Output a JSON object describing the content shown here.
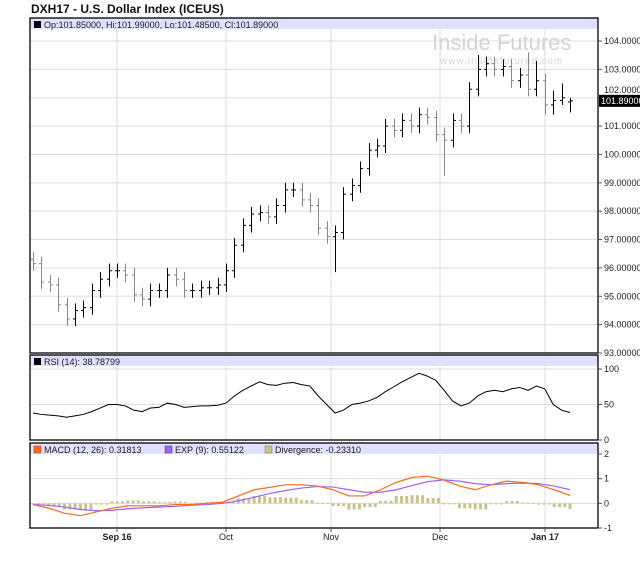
{
  "title": "DXH17 - U.S. Dollar Index (ICEUS)",
  "watermark": {
    "logo": "Inside Futures",
    "url": "www.insidefutures.com"
  },
  "colors": {
    "price": "#000000",
    "rsi": "#000000",
    "macd": "#ff6a1a",
    "exp": "#9966ff",
    "divergence": "#c8c48a",
    "legend_strip": "#e0e0ff",
    "grid": "#dddddd"
  },
  "chart_data": [
    {
      "type": "ohlc",
      "legend": "Op:101.85000, Hi:101.99000, Lo:101.48500, Cl:101.89000",
      "last_price_label": "101.89000",
      "ylim": [
        93,
        104
      ],
      "y_ticks": [
        "104.00000",
        "103.00000",
        "102.00000",
        "101.00000",
        "100.00000",
        "99.00000",
        "98.00000",
        "97.00000",
        "96.00000",
        "95.00000",
        "94.00000",
        "93.00000"
      ],
      "x_ticks": [
        {
          "label": "Sep 16",
          "bold": true
        },
        {
          "label": "Oct",
          "bold": false
        },
        {
          "label": "Nov",
          "bold": false
        },
        {
          "label": "Dec",
          "bold": false
        },
        {
          "label": "Jan 17",
          "bold": true
        }
      ],
      "grid": true,
      "open": [
        96.3,
        96.15,
        95.5,
        95.4,
        94.7,
        94.2,
        94.5,
        94.6,
        95.2,
        95.6,
        95.9,
        95.9,
        95.75,
        95.05,
        94.9,
        95.2,
        95.2,
        95.75,
        95.6,
        95.2,
        95.2,
        95.3,
        95.3,
        95.4,
        95.9,
        96.8,
        97.5,
        97.9,
        97.95,
        97.8,
        98.2,
        98.75,
        98.75,
        98.4,
        98.2,
        97.4,
        97.1,
        97.25,
        98.6,
        98.9,
        99.5,
        100.15,
        100.3,
        101.0,
        100.85,
        101.2,
        101.0,
        101.4,
        101.3,
        100.7,
        100.5,
        101.2,
        101.0,
        102.3,
        103.0,
        103.2,
        103.0,
        103.1,
        102.6,
        102.8,
        102.3,
        102.6,
        101.75,
        101.9,
        101.85
      ],
      "high": [
        96.55,
        96.4,
        95.75,
        95.65,
        94.95,
        94.75,
        94.85,
        95.45,
        95.85,
        96.15,
        96.15,
        96.15,
        96.0,
        95.3,
        95.45,
        95.45,
        96.0,
        96.0,
        95.85,
        95.45,
        95.55,
        95.55,
        95.65,
        96.15,
        97.05,
        97.75,
        98.15,
        98.2,
        98.2,
        98.45,
        99.0,
        99.0,
        99.0,
        98.65,
        98.45,
        97.65,
        97.5,
        98.85,
        99.15,
        99.75,
        100.4,
        100.55,
        101.25,
        101.25,
        101.45,
        101.45,
        101.65,
        101.65,
        101.55,
        100.95,
        101.45,
        101.45,
        102.55,
        103.5,
        103.45,
        103.45,
        103.35,
        103.35,
        103.05,
        103.6,
        103.3,
        102.85,
        102.25,
        102.5,
        101.99
      ],
      "low": [
        95.9,
        95.25,
        95.15,
        94.45,
        93.95,
        93.95,
        94.25,
        94.35,
        94.95,
        95.35,
        95.65,
        95.5,
        94.8,
        94.65,
        94.65,
        94.95,
        94.95,
        95.35,
        94.95,
        94.95,
        94.95,
        95.05,
        95.05,
        95.15,
        95.65,
        96.55,
        97.25,
        97.65,
        97.55,
        97.55,
        97.95,
        98.5,
        98.15,
        97.95,
        97.15,
        96.85,
        95.85,
        97.0,
        98.35,
        98.65,
        99.25,
        99.9,
        100.05,
        100.6,
        100.6,
        100.75,
        100.75,
        101.05,
        100.45,
        99.25,
        100.25,
        100.75,
        100.75,
        102.05,
        102.75,
        102.75,
        102.75,
        102.35,
        102.35,
        102.05,
        102.05,
        101.4,
        101.4,
        101.75,
        101.485
      ],
      "close": [
        96.15,
        95.5,
        95.4,
        94.7,
        94.2,
        94.5,
        94.6,
        95.2,
        95.6,
        95.9,
        95.9,
        95.75,
        95.05,
        94.9,
        95.2,
        95.2,
        95.75,
        95.6,
        95.2,
        95.2,
        95.3,
        95.3,
        95.4,
        95.9,
        96.8,
        97.5,
        97.9,
        97.95,
        97.8,
        98.2,
        98.75,
        98.75,
        98.4,
        98.2,
        97.4,
        97.1,
        97.25,
        98.6,
        98.9,
        99.5,
        100.15,
        100.3,
        101.0,
        100.85,
        101.2,
        101.0,
        101.4,
        101.3,
        100.7,
        100.5,
        101.2,
        101.0,
        102.3,
        103.0,
        103.2,
        103.0,
        103.1,
        102.6,
        102.8,
        102.3,
        102.6,
        101.75,
        101.9,
        102.0,
        101.89
      ]
    },
    {
      "type": "line",
      "legend": "RSI (14): 38.78799",
      "ylim": [
        0,
        100
      ],
      "y_ticks": [
        "100",
        "50",
        "0"
      ],
      "values": [
        38,
        36,
        35,
        34,
        32,
        34,
        36,
        40,
        45,
        50,
        50,
        48,
        42,
        40,
        45,
        46,
        52,
        50,
        46,
        47,
        48,
        48,
        49,
        52,
        62,
        70,
        76,
        82,
        78,
        77,
        80,
        81,
        78,
        76,
        62,
        50,
        38,
        42,
        50,
        52,
        55,
        60,
        68,
        75,
        82,
        88,
        94,
        90,
        84,
        70,
        55,
        48,
        52,
        62,
        68,
        70,
        68,
        72,
        74,
        70,
        76,
        72,
        50,
        42,
        38.78799
      ]
    },
    {
      "type": "line+bar",
      "ylim": [
        -1,
        2
      ],
      "y_ticks": [
        "2",
        "1",
        "0",
        "-1"
      ],
      "series": [
        {
          "name": "MACD (12, 26)",
          "legend": "MACD (12, 26): 0.31813",
          "values": [
            -0.05,
            -0.2,
            -0.4,
            -0.5,
            -0.35,
            -0.2,
            -0.1,
            -0.1,
            -0.1,
            -0.05,
            -0.05,
            0,
            0.05,
            0.3,
            0.55,
            0.65,
            0.75,
            0.75,
            0.7,
            0.55,
            0.3,
            0.3,
            0.55,
            0.85,
            1.05,
            1.1,
            0.95,
            0.7,
            0.55,
            0.75,
            0.9,
            0.85,
            0.75,
            0.55,
            0.31813
          ]
        },
        {
          "name": "EXP (9)",
          "legend": "EXP (9): 0.55122",
          "values": [
            -0.05,
            -0.08,
            -0.15,
            -0.25,
            -0.3,
            -0.28,
            -0.22,
            -0.18,
            -0.15,
            -0.12,
            -0.08,
            -0.05,
            0,
            0.1,
            0.25,
            0.4,
            0.52,
            0.62,
            0.68,
            0.66,
            0.55,
            0.45,
            0.45,
            0.55,
            0.72,
            0.88,
            0.95,
            0.9,
            0.8,
            0.75,
            0.8,
            0.82,
            0.8,
            0.7,
            0.55122
          ]
        },
        {
          "name": "Divergence",
          "legend": "Divergence: -0.23310",
          "values": [
            0,
            -0.12,
            -0.25,
            -0.25,
            -0.05,
            0.08,
            0.12,
            0.08,
            0.05,
            0.07,
            0.03,
            0.05,
            0.05,
            0.2,
            0.3,
            0.25,
            0.23,
            0.13,
            0.02,
            -0.11,
            -0.25,
            -0.15,
            0.1,
            0.3,
            0.33,
            0.22,
            0,
            -0.2,
            -0.25,
            0,
            0.1,
            0.03,
            -0.05,
            -0.15,
            -0.2331
          ]
        }
      ]
    }
  ]
}
